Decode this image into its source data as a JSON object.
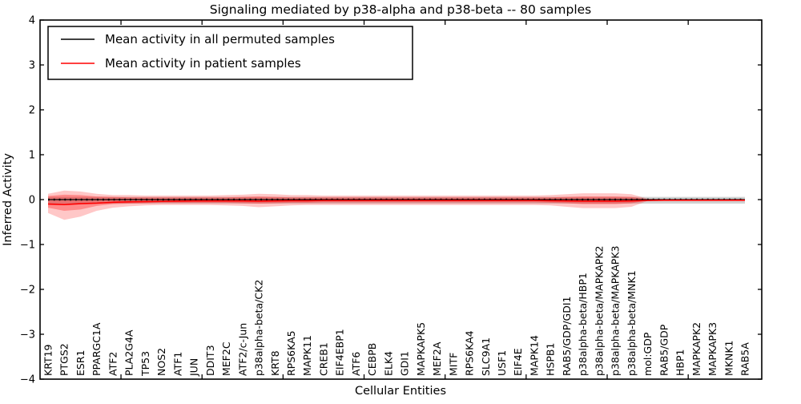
{
  "title": "Signaling mediated by p38-alpha and p38-beta -- 80 samples",
  "legend": {
    "items": [
      {
        "label": "Mean activity in all permuted samples",
        "color": "#000000"
      },
      {
        "label": "Mean activity in patient samples",
        "color": "#ff0000"
      }
    ]
  },
  "chart_data": {
    "type": "line",
    "title": "Signaling mediated by p38-alpha and p38-beta -- 80 samples",
    "xlabel": "Cellular Entities",
    "ylabel": "Inferred Activity",
    "ylim": [
      -4,
      4
    ],
    "ytick_values": [
      4,
      3,
      2,
      1,
      0,
      -1,
      -2,
      -3,
      -4
    ],
    "ytick_labels": [
      "4",
      "3",
      "2",
      "1",
      "0",
      "−1",
      "−2",
      "−3",
      "−4"
    ],
    "grid": false,
    "legend_position": "upper left",
    "categories": [
      "KRT19",
      "PTGS2",
      "ESR1",
      "PPARGC1A",
      "ATF2",
      "PLA2G4A",
      "TP53",
      "NOS2",
      "ATF1",
      "JUN",
      "DDIT3",
      "MEF2C",
      "ATF2/c-Jun",
      "p38alpha-beta/CK2",
      "KRT8",
      "RPS6KA5",
      "MAPK11",
      "CREB1",
      "EIF4EBP1",
      "ATF6",
      "CEBPB",
      "ELK4",
      "GDI1",
      "MAPKAPK5",
      "MEF2A",
      "MITF",
      "RPS6KA4",
      "SLC9A1",
      "USF1",
      "EIF4E",
      "MAPK14",
      "HSPB1",
      "RAB5/GDP/GDI1",
      "p38alpha-beta/HBP1",
      "p38alpha-beta/MAPKAPK2",
      "p38alpha-beta/MAPKAPK3",
      "p38alpha-beta/MNK1",
      "mol:GDP",
      "RAB5/GDP",
      "HBP1",
      "MAPKAPK2",
      "MAPKAPK3",
      "MKNK1",
      "RAB5A"
    ],
    "series": [
      {
        "name": "Mean activity in all permuted samples",
        "color": "#000000",
        "values": [
          0,
          0,
          0,
          0,
          0,
          0,
          0,
          0,
          0,
          0,
          0,
          0,
          0,
          0,
          0,
          0,
          0,
          0,
          0,
          0,
          0,
          0,
          0,
          0,
          0,
          0,
          0,
          0,
          0,
          0,
          0,
          0,
          0,
          0,
          0,
          0,
          0,
          0,
          0,
          0,
          0,
          0,
          0,
          0
        ]
      },
      {
        "name": "Mean activity in patient samples",
        "color": "#ff0000",
        "values": [
          -0.1,
          -0.11,
          -0.09,
          -0.08,
          -0.06,
          -0.05,
          -0.045,
          -0.04,
          -0.035,
          -0.03,
          -0.03,
          -0.03,
          -0.03,
          -0.035,
          -0.03,
          -0.025,
          -0.025,
          -0.02,
          -0.02,
          -0.02,
          -0.02,
          -0.02,
          -0.02,
          -0.02,
          -0.02,
          -0.02,
          -0.02,
          -0.02,
          -0.02,
          -0.02,
          -0.02,
          -0.025,
          -0.03,
          -0.035,
          -0.035,
          -0.035,
          -0.03,
          -0.02,
          -0.015,
          -0.015,
          -0.015,
          -0.015,
          -0.015,
          -0.015
        ]
      }
    ],
    "bands": [
      {
        "name": "permuted-std-band",
        "color": "#999999",
        "opacity": 0.45,
        "top": 0.06,
        "bottom": -0.09
      },
      {
        "name": "patient-outer-band",
        "color": "#ff0000",
        "opacity": 0.22,
        "top": [
          0.13,
          0.2,
          0.18,
          0.13,
          0.1,
          0.1,
          0.09,
          0.09,
          0.09,
          0.09,
          0.09,
          0.1,
          0.11,
          0.13,
          0.12,
          0.1,
          0.1,
          0.09,
          0.09,
          0.09,
          0.09,
          0.09,
          0.09,
          0.09,
          0.09,
          0.09,
          0.09,
          0.09,
          0.09,
          0.09,
          0.09,
          0.1,
          0.12,
          0.14,
          0.14,
          0.14,
          0.12,
          0.02,
          0.01,
          0.01,
          0.01,
          0.01,
          0.01,
          0.01
        ],
        "bottom": [
          -0.3,
          -0.45,
          -0.38,
          -0.25,
          -0.18,
          -0.15,
          -0.13,
          -0.12,
          -0.12,
          -0.12,
          -0.12,
          -0.13,
          -0.14,
          -0.17,
          -0.15,
          -0.13,
          -0.12,
          -0.12,
          -0.12,
          -0.12,
          -0.12,
          -0.12,
          -0.12,
          -0.12,
          -0.12,
          -0.12,
          -0.12,
          -0.12,
          -0.12,
          -0.12,
          -0.12,
          -0.13,
          -0.16,
          -0.19,
          -0.19,
          -0.19,
          -0.16,
          -0.03,
          -0.02,
          -0.02,
          -0.02,
          -0.02,
          -0.02,
          -0.02
        ]
      },
      {
        "name": "patient-inner-band",
        "color": "#ff0000",
        "opacity": 0.3,
        "top": [
          0.08,
          0.11,
          0.1,
          0.07,
          0.06,
          0.05,
          0.05,
          0.05,
          0.05,
          0.05,
          0.05,
          0.05,
          0.06,
          0.07,
          0.06,
          0.05,
          0.05,
          0.05,
          0.05,
          0.05,
          0.05,
          0.05,
          0.05,
          0.05,
          0.05,
          0.05,
          0.05,
          0.05,
          0.05,
          0.05,
          0.05,
          0.05,
          0.06,
          0.07,
          0.07,
          0.07,
          0.06,
          0.01,
          0.005,
          0.005,
          0.005,
          0.005,
          0.005,
          0.005
        ],
        "bottom": [
          -0.18,
          -0.25,
          -0.22,
          -0.14,
          -0.1,
          -0.09,
          -0.08,
          -0.07,
          -0.07,
          -0.07,
          -0.07,
          -0.07,
          -0.08,
          -0.09,
          -0.08,
          -0.07,
          -0.07,
          -0.06,
          -0.06,
          -0.06,
          -0.06,
          -0.06,
          -0.06,
          -0.06,
          -0.06,
          -0.06,
          -0.06,
          -0.06,
          -0.06,
          -0.06,
          -0.06,
          -0.07,
          -0.08,
          -0.1,
          -0.1,
          -0.1,
          -0.08,
          -0.02,
          -0.01,
          -0.01,
          -0.01,
          -0.01,
          -0.01,
          -0.01
        ]
      }
    ]
  }
}
